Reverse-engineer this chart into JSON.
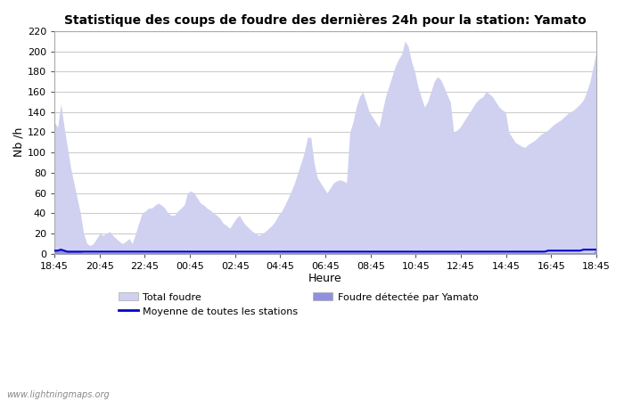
{
  "title": "Statistique des coups de foudre des dernières 24h pour la station: Yamato",
  "xlabel": "Heure",
  "ylabel": "Nb /h",
  "ylim": [
    0,
    220
  ],
  "yticks": [
    0,
    20,
    40,
    60,
    80,
    100,
    120,
    140,
    160,
    180,
    200,
    220
  ],
  "x_labels": [
    "18:45",
    "20:45",
    "22:45",
    "00:45",
    "02:45",
    "04:45",
    "06:45",
    "08:45",
    "10:45",
    "12:45",
    "14:45",
    "16:45",
    "18:45"
  ],
  "watermark": "www.lightningmaps.org",
  "color_total": "#d0d0f0",
  "color_yamato": "#9090e0",
  "color_moyenne": "#0000cc",
  "total_foudre": [
    130,
    125,
    148,
    125,
    105,
    85,
    70,
    55,
    40,
    20,
    10,
    8,
    10,
    15,
    20,
    18,
    20,
    22,
    18,
    15,
    12,
    10,
    12,
    15,
    10,
    20,
    30,
    40,
    42,
    45,
    45,
    48,
    50,
    48,
    45,
    40,
    38,
    38,
    42,
    45,
    48,
    60,
    62,
    60,
    55,
    50,
    48,
    45,
    43,
    40,
    38,
    35,
    30,
    28,
    25,
    30,
    35,
    38,
    32,
    28,
    25,
    22,
    20,
    18,
    20,
    22,
    25,
    28,
    32,
    38,
    42,
    48,
    55,
    62,
    70,
    80,
    90,
    100,
    115,
    115,
    90,
    75,
    70,
    65,
    60,
    65,
    70,
    72,
    73,
    72,
    70,
    120,
    130,
    145,
    155,
    160,
    150,
    140,
    135,
    130,
    125,
    140,
    155,
    165,
    175,
    185,
    192,
    197,
    210,
    205,
    190,
    180,
    165,
    155,
    145,
    150,
    160,
    170,
    175,
    172,
    165,
    157,
    150,
    120,
    122,
    125,
    130,
    135,
    140,
    145,
    150,
    153,
    155,
    160,
    158,
    155,
    150,
    145,
    142,
    140,
    120,
    115,
    110,
    108,
    106,
    105,
    108,
    110,
    112,
    115,
    118,
    120,
    122,
    125,
    128,
    130,
    132,
    135,
    138,
    140,
    142,
    145,
    148,
    152,
    160,
    170,
    185,
    200
  ],
  "yamato_foudre": [
    3,
    3,
    4,
    3,
    2,
    2,
    2,
    2,
    2,
    1,
    1,
    1,
    1,
    1,
    1,
    1,
    1,
    1,
    1,
    1,
    1,
    1,
    1,
    1,
    1,
    1,
    1,
    1,
    1,
    1,
    1,
    1,
    1,
    1,
    1,
    1,
    1,
    1,
    1,
    1,
    1,
    1,
    1,
    1,
    1,
    1,
    1,
    1,
    1,
    1,
    1,
    1,
    1,
    1,
    1,
    1,
    1,
    1,
    1,
    1,
    1,
    1,
    1,
    1,
    1,
    1,
    1,
    1,
    1,
    1,
    1,
    1,
    1,
    1,
    1,
    1,
    1,
    1,
    1,
    1,
    1,
    1,
    1,
    1,
    1,
    1,
    1,
    1,
    1,
    1,
    1,
    1,
    1,
    1,
    1,
    1,
    1,
    1,
    1,
    1,
    1,
    1,
    1,
    1,
    1,
    1,
    1,
    1,
    1,
    1,
    1,
    1,
    1,
    1,
    1,
    1,
    1,
    1,
    1,
    1,
    1,
    1,
    1,
    1,
    1,
    1,
    1,
    1,
    1,
    1,
    1,
    1,
    1,
    1,
    1,
    1,
    1,
    1,
    1,
    1,
    1,
    1,
    1,
    1,
    1,
    1,
    1,
    1,
    1,
    1,
    1,
    1,
    1,
    1,
    1,
    1,
    1,
    1,
    1,
    1,
    1,
    1,
    1,
    1,
    1,
    1,
    1,
    1,
    4
  ],
  "moyenne": [
    3,
    3,
    4,
    3,
    2,
    2,
    2,
    2,
    2,
    2,
    2,
    2,
    2,
    2,
    2,
    2,
    2,
    2,
    2,
    2,
    2,
    2,
    2,
    2,
    2,
    2,
    2,
    2,
    2,
    2,
    2,
    2,
    2,
    2,
    2,
    2,
    2,
    2,
    2,
    2,
    2,
    2,
    2,
    2,
    2,
    2,
    2,
    2,
    2,
    2,
    2,
    2,
    2,
    2,
    2,
    2,
    2,
    2,
    2,
    2,
    2,
    2,
    2,
    2,
    2,
    2,
    2,
    2,
    2,
    2,
    2,
    2,
    2,
    2,
    2,
    2,
    2,
    2,
    2,
    2,
    2,
    2,
    2,
    2,
    2,
    2,
    2,
    2,
    2,
    2,
    2,
    2,
    2,
    2,
    2,
    2,
    2,
    2,
    2,
    2,
    2,
    2,
    2,
    2,
    2,
    2,
    2,
    2,
    2,
    2,
    2,
    2,
    2,
    2,
    2,
    2,
    2,
    2,
    2,
    2,
    2,
    2,
    2,
    2,
    2,
    2,
    2,
    2,
    2,
    2,
    2,
    2,
    2,
    2,
    2,
    2,
    2,
    2,
    2,
    2,
    2,
    2,
    2,
    2,
    2,
    2,
    2,
    2,
    2,
    2,
    2,
    2,
    2,
    3,
    3,
    3,
    3,
    3,
    3,
    3,
    3,
    3,
    3,
    3,
    4,
    4,
    4,
    4,
    4
  ]
}
